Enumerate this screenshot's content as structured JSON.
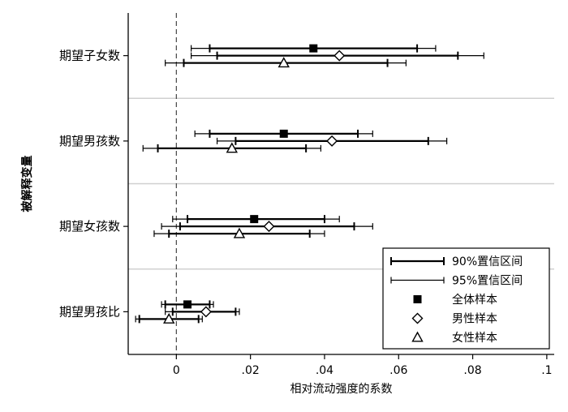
{
  "chart_data": {
    "type": "coefficient-plot",
    "orientation": "horizontal",
    "xlabel": "相对流动强度的系数",
    "ylabel": "被解释变量",
    "xlim": [
      -0.013,
      0.102
    ],
    "x_ticks": [
      0,
      0.02,
      0.04,
      0.06,
      0.08,
      0.1
    ],
    "x_tick_labels": [
      "0",
      ".02",
      ".04",
      ".06",
      ".08",
      ".1"
    ],
    "reference_line": {
      "x": 0,
      "style": "dashed"
    },
    "categories": [
      "期望子女数",
      "期望男孩数",
      "期望女孩数",
      "期望男孩比"
    ],
    "series": [
      {
        "name": "全体样本",
        "marker": "filled-square",
        "points": [
          {
            "category": "期望子女数",
            "estimate": 0.037,
            "ci90": [
              0.009,
              0.065
            ],
            "ci95": [
              0.004,
              0.07
            ]
          },
          {
            "category": "期望男孩数",
            "estimate": 0.029,
            "ci90": [
              0.009,
              0.049
            ],
            "ci95": [
              0.005,
              0.053
            ]
          },
          {
            "category": "期望女孩数",
            "estimate": 0.021,
            "ci90": [
              0.003,
              0.04
            ],
            "ci95": [
              -0.001,
              0.044
            ]
          },
          {
            "category": "期望男孩比",
            "estimate": 0.003,
            "ci90": [
              -0.003,
              0.009
            ],
            "ci95": [
              -0.004,
              0.01
            ]
          }
        ]
      },
      {
        "name": "男性样本",
        "marker": "hollow-diamond",
        "points": [
          {
            "category": "期望子女数",
            "estimate": 0.044,
            "ci90": [
              0.011,
              0.076
            ],
            "ci95": [
              0.004,
              0.083
            ]
          },
          {
            "category": "期望男孩数",
            "estimate": 0.042,
            "ci90": [
              0.016,
              0.068
            ],
            "ci95": [
              0.011,
              0.073
            ]
          },
          {
            "category": "期望女孩数",
            "estimate": 0.025,
            "ci90": [
              0.001,
              0.048
            ],
            "ci95": [
              -0.004,
              0.053
            ]
          },
          {
            "category": "期望男孩比",
            "estimate": 0.008,
            "ci90": [
              -0.001,
              0.016
            ],
            "ci95": [
              -0.003,
              0.017
            ]
          }
        ]
      },
      {
        "name": "女性样本",
        "marker": "hollow-triangle",
        "points": [
          {
            "category": "期望子女数",
            "estimate": 0.029,
            "ci90": [
              0.002,
              0.057
            ],
            "ci95": [
              -0.003,
              0.062
            ]
          },
          {
            "category": "期望男孩数",
            "estimate": 0.015,
            "ci90": [
              -0.005,
              0.035
            ],
            "ci95": [
              -0.009,
              0.039
            ]
          },
          {
            "category": "期望女孩数",
            "estimate": 0.017,
            "ci90": [
              -0.002,
              0.036
            ],
            "ci95": [
              -0.006,
              0.04
            ]
          },
          {
            "category": "期望男孩比",
            "estimate": -0.002,
            "ci90": [
              -0.01,
              0.006
            ],
            "ci95": [
              -0.011,
              0.007
            ]
          }
        ]
      }
    ],
    "legend": {
      "position": "bottom-right",
      "entries": [
        {
          "label": "90%置信区间",
          "kind": "ci90"
        },
        {
          "label": "95%置信区间",
          "kind": "ci95"
        },
        {
          "label": "全体样本",
          "kind": "filled-square"
        },
        {
          "label": "男性样本",
          "kind": "hollow-diamond"
        },
        {
          "label": "女性样本",
          "kind": "hollow-triangle"
        }
      ]
    },
    "group_separators": true,
    "colors": {
      "ink": "#000000",
      "separator": "#d0d0d0",
      "background": "#ffffff"
    }
  }
}
